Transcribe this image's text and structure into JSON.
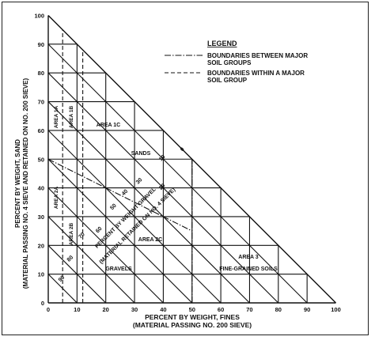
{
  "legend": {
    "title": "LEGEND",
    "item1_line1": "BOUNDARIES BETWEEN MAJOR",
    "item1_line2": "SOIL GROUPS",
    "item2_line1": "BOUNDARIES WITHIN A MAJOR",
    "item2_line2": "SOIL GROUP"
  },
  "axes": {
    "x_title": "PERCENT BY WEIGHT, FINES",
    "x_subtitle": "(MATERIAL PASSING NO. 200 SIEVE)",
    "y_title": "PERCENT BY WEIGHT, SAND",
    "y_subtitle": "(MATERIAL PASSING NO. 4 SIEVE AND RETAINED ON NO. 200 SIEVE)",
    "diag_title": "PERCENT BY WEIGHT GRAVEL",
    "diag_subtitle": "(MATERIAL RETAINED ON NO. 4 SIEVE)"
  },
  "ticks": {
    "x": [
      "0",
      "10",
      "20",
      "30",
      "40",
      "50",
      "60",
      "70",
      "80",
      "90",
      "100"
    ],
    "y": [
      "0",
      "10",
      "20",
      "30",
      "40",
      "50",
      "60",
      "70",
      "80",
      "90",
      "100"
    ],
    "gravel": [
      "0",
      "10",
      "20",
      "30",
      "40",
      "50",
      "60",
      "70",
      "80",
      "90"
    ]
  },
  "regions": {
    "area_1a": "AREA 1A",
    "area_1b": "AREA 1B",
    "area_1c": "AREA 1C",
    "area_2a": "AREA 2A",
    "area_2b": "AREA 2B",
    "area_2c": "AREA 2C",
    "area_3": "AREA 3",
    "sands": "SANDS",
    "gravels": "GRAVELS",
    "fine_grained": "FINE-GRAINED SOILS"
  }
}
